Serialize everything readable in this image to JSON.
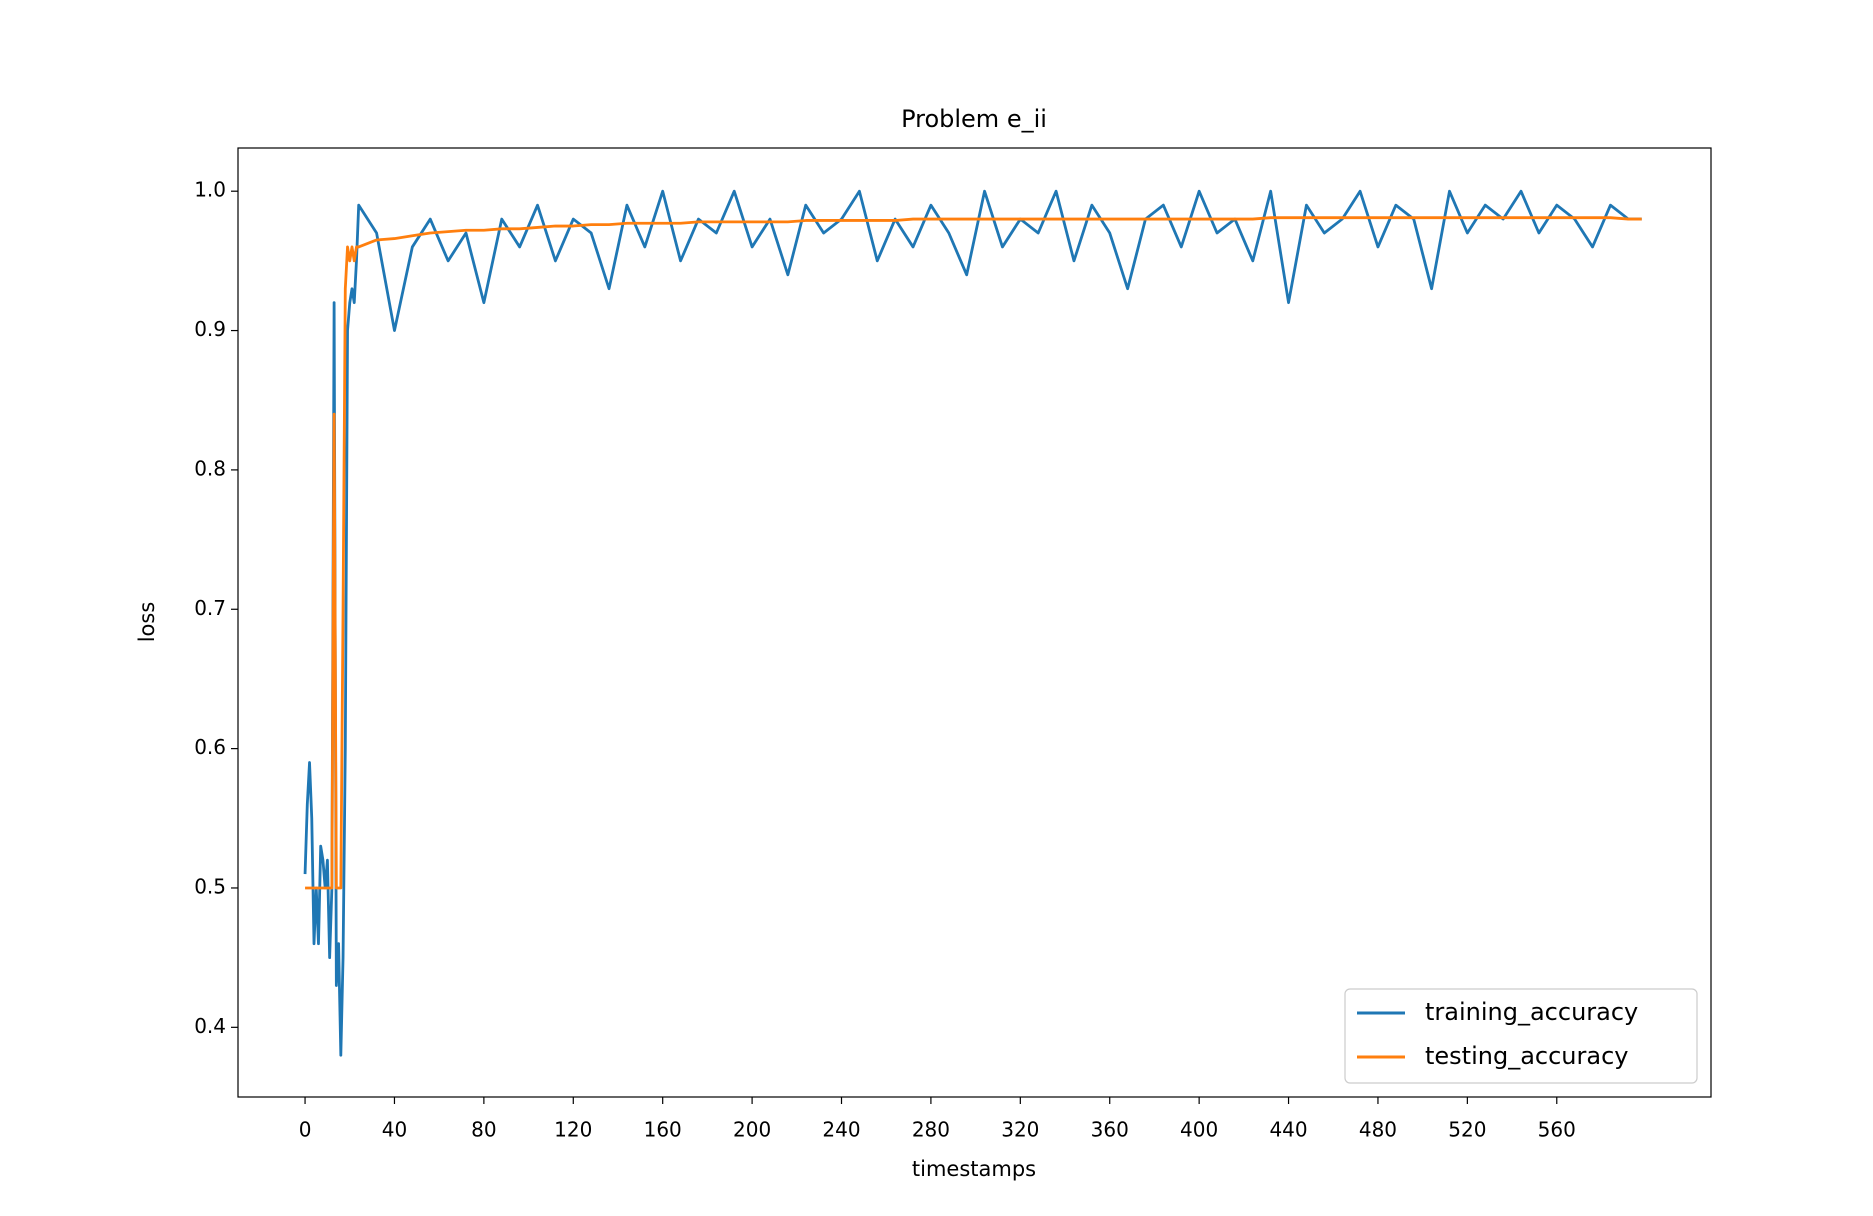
{
  "chart_data": {
    "type": "line",
    "title": "Problem e_ii",
    "xlabel": "timestamps",
    "ylabel": "loss",
    "x": [
      0,
      1,
      2,
      3,
      4,
      5,
      6,
      7,
      8,
      9,
      10,
      11,
      12,
      13,
      14,
      15,
      16,
      17,
      18,
      19,
      20,
      21,
      22,
      23,
      24,
      32,
      40,
      48,
      56,
      64,
      72,
      80,
      88,
      96,
      104,
      112,
      120,
      128,
      136,
      144,
      152,
      160,
      168,
      176,
      184,
      192,
      200,
      208,
      216,
      224,
      232,
      240,
      248,
      256,
      264,
      272,
      280,
      288,
      296,
      304,
      312,
      320,
      328,
      336,
      344,
      352,
      360,
      368,
      376,
      384,
      392,
      400,
      408,
      416,
      424,
      432,
      440,
      448,
      456,
      464,
      472,
      480,
      488,
      496,
      504,
      512,
      520,
      528,
      536,
      544,
      552,
      560,
      568,
      576,
      584,
      592,
      598
    ],
    "series": [
      {
        "name": "training_accuracy",
        "color": "#1f77b4",
        "values": [
          0.51,
          0.56,
          0.59,
          0.55,
          0.46,
          0.5,
          0.46,
          0.53,
          0.52,
          0.5,
          0.52,
          0.45,
          0.5,
          0.92,
          0.43,
          0.46,
          0.38,
          0.45,
          0.6,
          0.9,
          0.92,
          0.93,
          0.92,
          0.95,
          0.99,
          0.97,
          0.9,
          0.96,
          0.98,
          0.95,
          0.97,
          0.92,
          0.98,
          0.96,
          0.99,
          0.95,
          0.98,
          0.97,
          0.93,
          0.99,
          0.96,
          1.0,
          0.95,
          0.98,
          0.97,
          1.0,
          0.96,
          0.98,
          0.94,
          0.99,
          0.97,
          0.98,
          1.0,
          0.95,
          0.98,
          0.96,
          0.99,
          0.97,
          0.94,
          1.0,
          0.96,
          0.98,
          0.97,
          1.0,
          0.95,
          0.99,
          0.97,
          0.93,
          0.98,
          0.99,
          0.96,
          1.0,
          0.97,
          0.98,
          0.95,
          1.0,
          0.92,
          0.99,
          0.97,
          0.98,
          1.0,
          0.96,
          0.99,
          0.98,
          0.93,
          1.0,
          0.97,
          0.99,
          0.98,
          1.0,
          0.97,
          0.99,
          0.98,
          0.96,
          0.99,
          0.98,
          0.98
        ]
      },
      {
        "name": "testing_accuracy",
        "color": "#ff7f0e",
        "values": [
          0.5,
          0.5,
          0.5,
          0.5,
          0.5,
          0.5,
          0.5,
          0.5,
          0.5,
          0.5,
          0.5,
          0.5,
          0.5,
          0.84,
          0.5,
          0.5,
          0.5,
          0.7,
          0.93,
          0.96,
          0.95,
          0.96,
          0.95,
          0.96,
          0.96,
          0.965,
          0.966,
          0.968,
          0.97,
          0.971,
          0.972,
          0.972,
          0.973,
          0.973,
          0.974,
          0.975,
          0.975,
          0.976,
          0.976,
          0.977,
          0.977,
          0.977,
          0.977,
          0.978,
          0.978,
          0.978,
          0.978,
          0.978,
          0.978,
          0.979,
          0.979,
          0.979,
          0.979,
          0.979,
          0.979,
          0.98,
          0.98,
          0.98,
          0.98,
          0.98,
          0.98,
          0.98,
          0.98,
          0.98,
          0.98,
          0.98,
          0.98,
          0.98,
          0.98,
          0.98,
          0.98,
          0.98,
          0.98,
          0.98,
          0.98,
          0.981,
          0.981,
          0.981,
          0.981,
          0.981,
          0.981,
          0.981,
          0.981,
          0.981,
          0.981,
          0.981,
          0.981,
          0.981,
          0.981,
          0.981,
          0.981,
          0.981,
          0.981,
          0.981,
          0.981,
          0.98,
          0.98
        ]
      }
    ],
    "xlim": [
      -30,
      629
    ],
    "ylim": [
      0.35,
      1.031
    ],
    "xticks": [
      0,
      40,
      80,
      120,
      160,
      200,
      240,
      280,
      320,
      360,
      400,
      440,
      480,
      520,
      560
    ],
    "yticks": [
      0.4,
      0.5,
      0.6,
      0.7,
      0.8,
      0.9,
      {
        "value": 1,
        "label": "1.0"
      }
    ],
    "legend": "lower right"
  }
}
